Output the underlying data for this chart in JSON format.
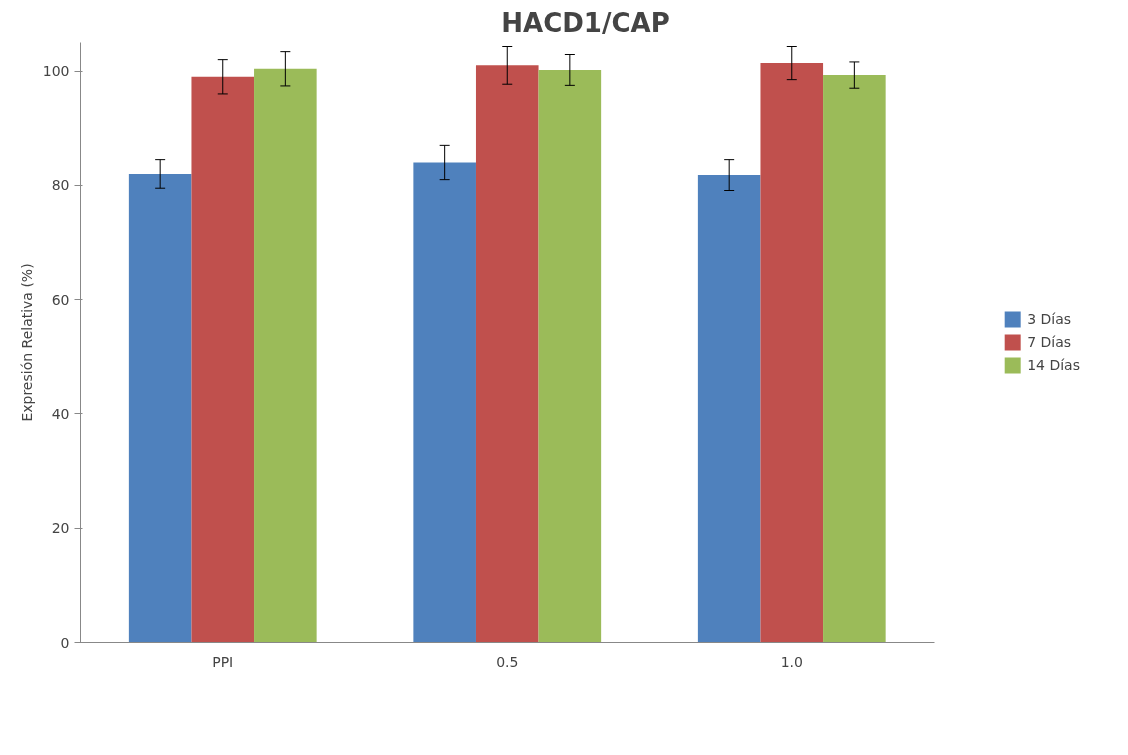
{
  "chart_data": {
    "type": "bar",
    "title": "HACD1/CAP",
    "ylabel": "Expresión Relativa (%)",
    "categories": [
      "PPI",
      "0.5",
      "1.0"
    ],
    "series": [
      {
        "name": "3 Días",
        "color": "#4f81bd",
        "values": [
          82,
          84,
          81.8
        ],
        "errors": [
          2.5,
          3,
          2.7
        ]
      },
      {
        "name": "7 Días",
        "color": "#c0504d",
        "values": [
          99,
          101,
          101.4
        ],
        "errors": [
          3,
          3.3,
          2.9
        ]
      },
      {
        "name": "14 Días",
        "color": "#9bbb59",
        "values": [
          100.4,
          100.2,
          99.3
        ],
        "errors": [
          3,
          2.7,
          2.3
        ]
      }
    ],
    "ylim": [
      0,
      105
    ],
    "yticks": [
      0,
      20,
      40,
      60,
      80,
      100
    ],
    "grid": false,
    "legend": "right"
  }
}
